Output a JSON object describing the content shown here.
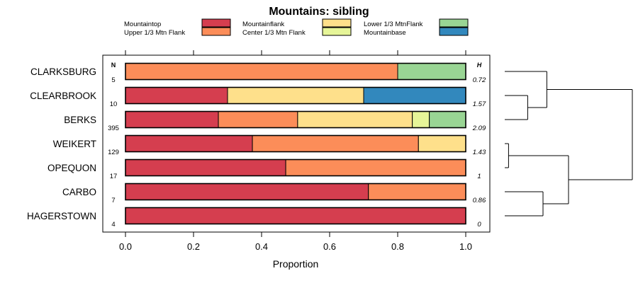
{
  "chart_data": {
    "type": "bar",
    "stacked": true,
    "orientation": "horizontal",
    "title": "Mountains: sibling",
    "xlabel": "Proportion",
    "ylabel": "",
    "xlim": [
      0,
      1
    ],
    "xticks": [
      "0.0",
      "0.2",
      "0.4",
      "0.6",
      "0.8",
      "1.0"
    ],
    "n_label": "N",
    "h_label": "H",
    "legend": [
      {
        "name": "Mountaintop",
        "color": "#D53E4F"
      },
      {
        "name": "Upper 1/3 Mtn Flank",
        "color": "#FC8D59"
      },
      {
        "name": "Mountainflank",
        "color": "#FEE08B"
      },
      {
        "name": "Center 1/3 Mtn Flank",
        "color": "#E6F598"
      },
      {
        "name": "Lower 1/3 MtnFlank",
        "color": "#99D594"
      },
      {
        "name": "Mountainbase",
        "color": "#3288BD"
      }
    ],
    "categories": [
      "CLARKSBURG",
      "CLEARBROOK",
      "BERKS",
      "WEIKERT",
      "OPEQUON",
      "CARBO",
      "HAGERSTOWN"
    ],
    "n": [
      "5",
      "10",
      "395",
      "129",
      "17",
      "7",
      "4"
    ],
    "h": [
      "0.72",
      "1.57",
      "2.09",
      "1.43",
      "1",
      "0.86",
      "0"
    ],
    "series": [
      {
        "name": "Mountaintop",
        "values": [
          0,
          0.3,
          0.273,
          0.373,
          0.471,
          0.714,
          1.0
        ]
      },
      {
        "name": "Upper 1/3 Mtn Flank",
        "values": [
          0.8,
          0,
          0.233,
          0.488,
          0.529,
          0.286,
          0
        ]
      },
      {
        "name": "Mountainflank",
        "values": [
          0,
          0.4,
          0.337,
          0.139,
          0,
          0,
          0
        ]
      },
      {
        "name": "Center 1/3 Mtn Flank",
        "values": [
          0,
          0,
          0.05,
          0,
          0,
          0,
          0
        ]
      },
      {
        "name": "Lower 1/3 MtnFlank",
        "values": [
          0.2,
          0,
          0.107,
          0,
          0,
          0,
          0
        ]
      },
      {
        "name": "Mountainbase",
        "values": [
          0,
          0.3,
          0,
          0,
          0,
          0,
          0
        ]
      }
    ],
    "dendrogram": [
      {
        "a": "OPEQUON",
        "b": "WEIKERT"
      },
      {
        "a": "CLEARBROOK",
        "b": "BERKS"
      },
      {
        "a": "CLARKSBURG",
        "b": "CLEARBROOK+BERKS"
      },
      {
        "a": "CARBO",
        "b": "HAGERSTOWN"
      },
      {
        "a": "OPEQUON+WEIKERT",
        "b": "CARBO+HAGERSTOWN"
      },
      {
        "a": "CLARKSBURG+CLEARBROOK+BERKS",
        "b": "OPEQUON+WEIKERT+CARBO+HAGERSTOWN"
      }
    ],
    "dendrogram_heights": [
      0.03,
      0.18,
      0.33,
      0.3,
      0.5,
      1.0
    ]
  }
}
